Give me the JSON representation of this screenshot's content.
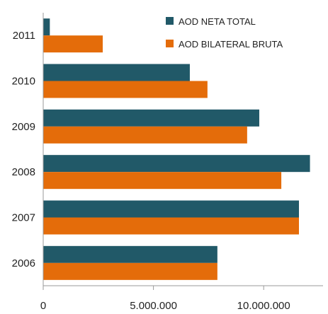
{
  "chart_data": {
    "type": "bar",
    "orientation": "horizontal",
    "categories": [
      "2006",
      "2007",
      "2008",
      "2009",
      "2010",
      "2011"
    ],
    "series": [
      {
        "name": "AOD NETA TOTAL",
        "color": "#215968",
        "values": [
          7900000,
          11600000,
          12100000,
          9800000,
          6650000,
          300000
        ]
      },
      {
        "name": "AOD BILATERAL BRUTA",
        "color": "#E46C0A",
        "values": [
          7900000,
          11600000,
          10800000,
          9250000,
          7450000,
          2700000
        ]
      }
    ],
    "x_ticks": [
      "0",
      "5.000.000",
      "10.000.000"
    ],
    "xlim": [
      0,
      12500000
    ],
    "grid": false,
    "legend_position": "top-right"
  }
}
